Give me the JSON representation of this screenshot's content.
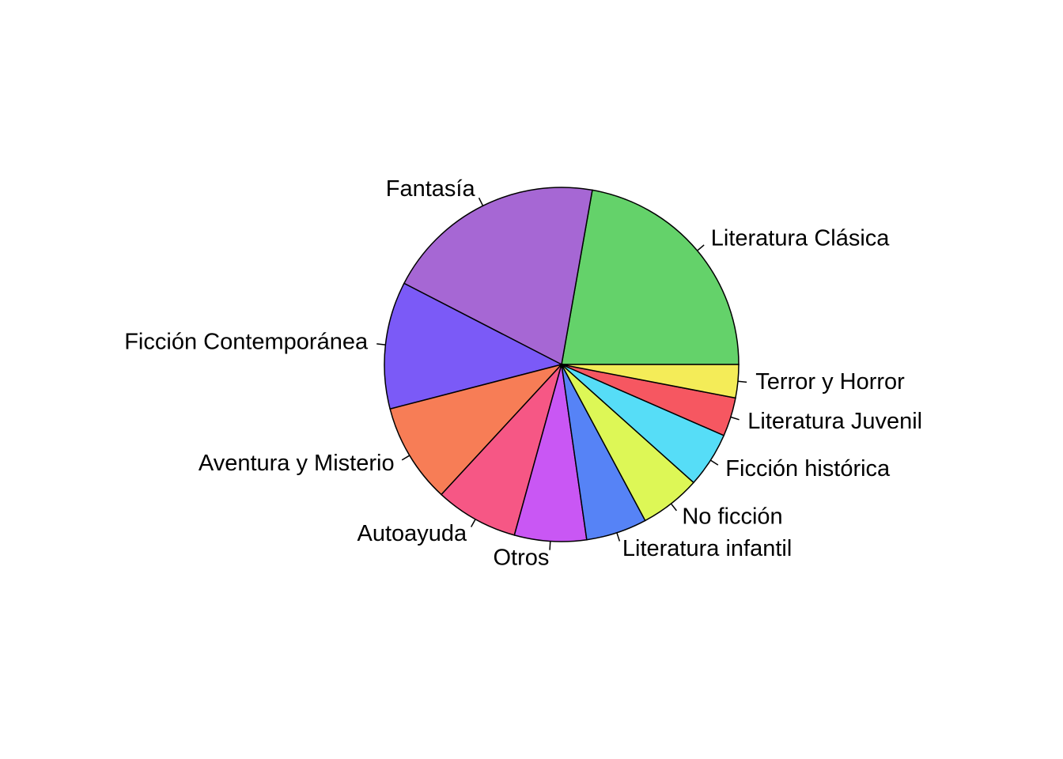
{
  "chart_data": {
    "type": "pie",
    "direction": "counterclockwise",
    "start": "right",
    "slices": [
      {
        "label": "Literatura Clásica",
        "value": 22.0,
        "color": "#64D26A"
      },
      {
        "label": "Fantasía",
        "value": 20.0,
        "color": "#A667D4"
      },
      {
        "label": "Ficción Contemporánea",
        "value": 11.5,
        "color": "#7B5AF7"
      },
      {
        "label": "Aventura y Misterio",
        "value": 9.0,
        "color": "#F77D56"
      },
      {
        "label": "Autoayuda",
        "value": 7.5,
        "color": "#F65785"
      },
      {
        "label": "Otros",
        "value": 6.5,
        "color": "#C957F4"
      },
      {
        "label": "Literatura infantil",
        "value": 5.5,
        "color": "#5683F6"
      },
      {
        "label": "No ficción",
        "value": 5.5,
        "color": "#DDF756"
      },
      {
        "label": "Ficción histórica",
        "value": 5.0,
        "color": "#56DDF7"
      },
      {
        "label": "Literatura Juvenil",
        "value": 3.5,
        "color": "#F65761"
      },
      {
        "label": "Terror y Horror",
        "value": 3.0,
        "color": "#F4EC58"
      }
    ]
  }
}
